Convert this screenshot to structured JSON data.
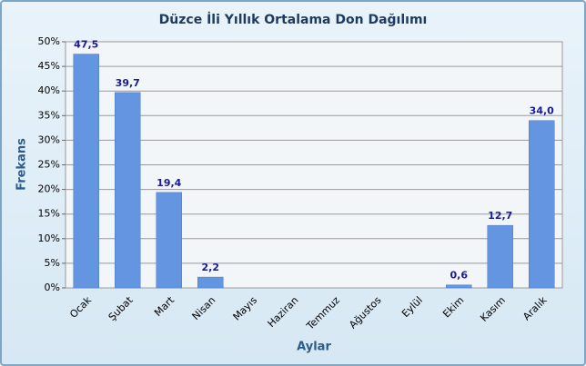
{
  "chart_data": {
    "type": "bar",
    "title": "Düzce İli Yıllık Ortalama Don Dağılımı",
    "x_label": "Aylar",
    "y_label": "Frekans",
    "categories": [
      "Ocak",
      "Şubat",
      "Mart",
      "Nisan",
      "Mayıs",
      "Haziran",
      "Temmuz",
      "Ağustos",
      "Eylül",
      "Ekim",
      "Kasım",
      "Aralık"
    ],
    "values": [
      47.5,
      39.7,
      19.4,
      2.2,
      0,
      0,
      0,
      0,
      0,
      0.6,
      12.7,
      34.0
    ],
    "value_labels": [
      "47,5",
      "39,7",
      "19,4",
      "2,2",
      null,
      null,
      null,
      null,
      null,
      "0,6",
      "12,7",
      "34,0"
    ],
    "color": "#6495e0",
    "ylim": [
      0,
      50
    ],
    "yticks": [
      {
        "value": 0,
        "label": "0%"
      },
      {
        "value": 5,
        "label": "5%"
      },
      {
        "value": 10,
        "label": "10%"
      },
      {
        "value": 15,
        "label": "15%"
      },
      {
        "value": 20,
        "label": "20%"
      },
      {
        "value": 25,
        "label": "25%"
      },
      {
        "value": 30,
        "label": "30%"
      },
      {
        "value": 35,
        "label": "35%"
      },
      {
        "value": 40,
        "label": "40%"
      },
      {
        "value": 45,
        "label": "45%"
      },
      {
        "value": 50,
        "label": "50%"
      }
    ],
    "grid": true
  }
}
